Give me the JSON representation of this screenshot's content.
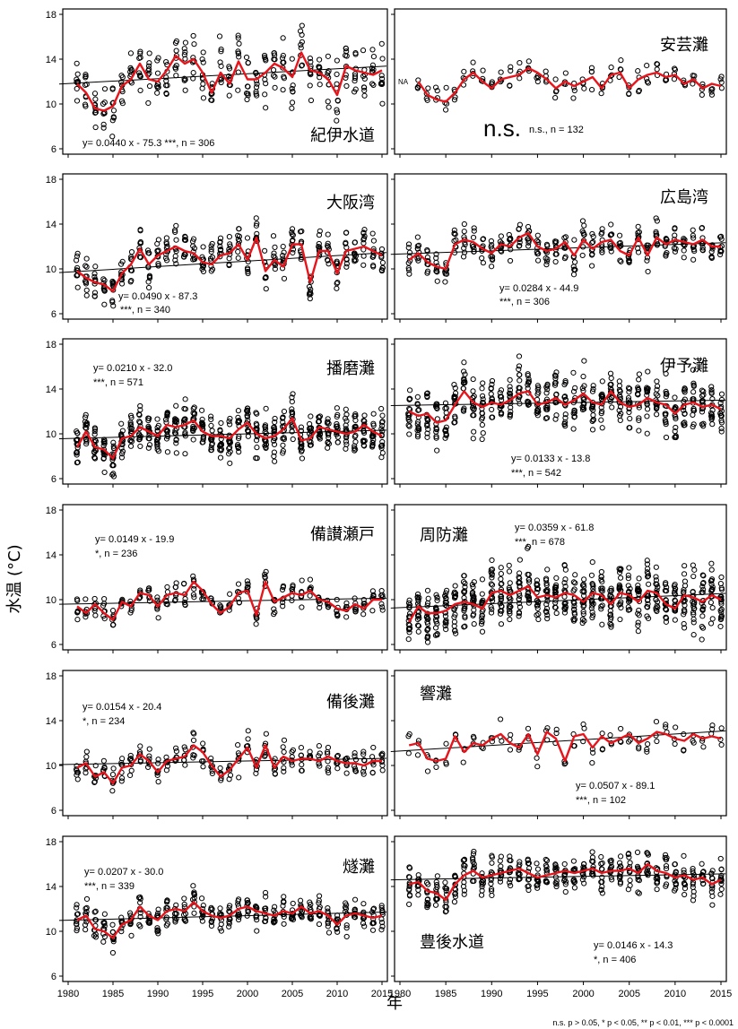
{
  "figure": {
    "ylabel": "水温 (°C)",
    "xlabel": "年",
    "footnote": "n.s. p > 0.05, * p < 0.05, ** p < 0.01, *** p < 0.0001",
    "xticks": [
      "1980",
      "1985",
      "1990",
      "1995",
      "2000",
      "2005",
      "2010",
      "2015"
    ],
    "yticks": [
      "6",
      "10",
      "14",
      "18"
    ],
    "colors": {
      "points": "#000000",
      "mean_line": "#e8141b",
      "trend_line": "#000000"
    }
  },
  "chart_data": [
    {
      "type": "scatter",
      "title": "紀伊水道",
      "equation": "y= 0.0440 x - 75.3 ***, n = 306",
      "slope": 0.044,
      "intercept": -75.3,
      "n": 306,
      "xlim": [
        1980,
        2015
      ],
      "ylim": [
        6,
        18
      ],
      "annual_mean": {
        "x": [
          1981,
          1982,
          1983,
          1984,
          1985,
          1986,
          1987,
          1988,
          1989,
          1990,
          1991,
          1992,
          1993,
          1994,
          1995,
          1996,
          1997,
          1998,
          1999,
          2000,
          2001,
          2002,
          2003,
          2004,
          2005,
          2006,
          2007,
          2008,
          2009,
          2010,
          2011,
          2012,
          2013,
          2014,
          2015
        ],
        "y": [
          11.8,
          11.0,
          9.6,
          9.4,
          9.8,
          11.6,
          12.2,
          13.6,
          12.2,
          12.0,
          13.0,
          14.3,
          13.6,
          14.0,
          12.8,
          11.0,
          12.8,
          11.8,
          13.8,
          12.2,
          12.2,
          12.8,
          13.6,
          13.2,
          12.4,
          14.6,
          13.0,
          12.8,
          12.2,
          10.8,
          13.4,
          13.0,
          12.8,
          12.6,
          13.0
        ]
      },
      "spread": 2.2
    },
    {
      "type": "scatter",
      "title": "安芸灘",
      "equation": "n.s., n = 132",
      "significance": "n.s.",
      "na_label": "NA",
      "n": 132,
      "xlim": [
        1980,
        2015
      ],
      "ylim": [
        6,
        18
      ],
      "annual_mean": {
        "x": [
          1982,
          1983,
          1984,
          1985,
          1986,
          1987,
          1988,
          1989,
          1990,
          1991,
          1992,
          1993,
          1994,
          1995,
          1996,
          1997,
          1998,
          1999,
          2000,
          2001,
          2002,
          2003,
          2004,
          2005,
          2006,
          2007,
          2008,
          2009,
          2010,
          2011,
          2012,
          2013,
          2014,
          2015
        ],
        "y": [
          12.0,
          10.8,
          10.4,
          10.2,
          11.0,
          12.2,
          12.8,
          12.0,
          11.4,
          12.2,
          12.4,
          12.6,
          13.2,
          12.8,
          12.2,
          11.4,
          12.0,
          11.6,
          12.0,
          12.4,
          11.4,
          12.6,
          12.8,
          11.4,
          12.2,
          12.6,
          12.8,
          12.4,
          12.6,
          11.8,
          12.2,
          11.4,
          11.8,
          11.6
        ]
      },
      "spread": 1.0
    },
    {
      "type": "scatter",
      "title": "大阪湾",
      "equation": "y= 0.0490 x - 87.3",
      "equation2": "***, n = 340",
      "slope": 0.049,
      "intercept": -87.3,
      "n": 340,
      "xlim": [
        1980,
        2015
      ],
      "ylim": [
        6,
        18
      ],
      "annual_mean": {
        "x": [
          1981,
          1982,
          1983,
          1984,
          1985,
          1986,
          1987,
          1988,
          1989,
          1990,
          1991,
          1992,
          1993,
          1994,
          1995,
          1996,
          1997,
          1998,
          1999,
          2000,
          2001,
          2002,
          2003,
          2004,
          2005,
          2006,
          2007,
          2008,
          2009,
          2010,
          2011,
          2012,
          2013,
          2014,
          2015
        ],
        "y": [
          9.8,
          9.2,
          8.8,
          8.6,
          8.0,
          9.6,
          10.4,
          11.8,
          10.4,
          11.2,
          11.6,
          12.0,
          11.6,
          11.4,
          10.6,
          10.4,
          11.2,
          11.4,
          12.2,
          10.8,
          12.8,
          9.8,
          10.8,
          10.2,
          12.2,
          12.2,
          8.8,
          11.6,
          11.6,
          9.6,
          11.6,
          11.8,
          12.0,
          11.6,
          11.2
        ]
      },
      "spread": 1.6
    },
    {
      "type": "scatter",
      "title": "広島湾",
      "equation": "y= 0.0284 x - 44.9",
      "equation2": "***, n = 306",
      "slope": 0.0284,
      "intercept": -44.9,
      "n": 306,
      "xlim": [
        1980,
        2015
      ],
      "ylim": [
        6,
        18
      ],
      "annual_mean": {
        "x": [
          1981,
          1982,
          1983,
          1984,
          1985,
          1986,
          1987,
          1988,
          1989,
          1990,
          1991,
          1992,
          1993,
          1994,
          1995,
          1996,
          1997,
          1998,
          1999,
          2000,
          2001,
          2002,
          2003,
          2004,
          2005,
          2006,
          2007,
          2008,
          2009,
          2010,
          2011,
          2012,
          2013,
          2014,
          2015
        ],
        "y": [
          10.8,
          11.4,
          10.6,
          10.2,
          10.0,
          12.2,
          12.6,
          12.4,
          11.8,
          11.4,
          12.2,
          12.0,
          12.8,
          13.2,
          12.0,
          11.6,
          11.8,
          12.4,
          11.2,
          12.6,
          11.8,
          12.4,
          12.6,
          11.6,
          11.2,
          12.8,
          11.2,
          12.8,
          12.2,
          12.6,
          12.4,
          12.2,
          12.6,
          12.0,
          12.0
        ]
      },
      "spread": 1.3
    },
    {
      "type": "scatter",
      "title": "播磨灘",
      "equation": "y= 0.0210 x - 32.0",
      "equation2": "***, n = 571",
      "slope": 0.021,
      "intercept": -32.0,
      "n": 571,
      "xlim": [
        1980,
        2015
      ],
      "ylim": [
        6,
        18
      ],
      "annual_mean": {
        "x": [
          1981,
          1982,
          1983,
          1984,
          1985,
          1986,
          1987,
          1988,
          1989,
          1990,
          1991,
          1992,
          1993,
          1994,
          1995,
          1996,
          1997,
          1998,
          1999,
          2000,
          2001,
          2002,
          2003,
          2004,
          2005,
          2006,
          2007,
          2008,
          2009,
          2010,
          2011,
          2012,
          2013,
          2014,
          2015
        ],
        "y": [
          8.8,
          10.2,
          8.8,
          8.6,
          7.8,
          9.6,
          9.8,
          10.6,
          10.2,
          9.8,
          10.8,
          10.6,
          10.8,
          11.2,
          10.2,
          9.8,
          9.8,
          9.6,
          10.4,
          11.0,
          10.0,
          9.6,
          9.8,
          10.4,
          11.4,
          9.4,
          9.6,
          10.6,
          10.4,
          10.2,
          10.0,
          10.2,
          10.8,
          10.2,
          9.8
        ]
      },
      "spread": 1.8
    },
    {
      "type": "scatter",
      "title": "伊予灘",
      "equation": "y= 0.0133 x - 13.8",
      "equation2": "***, n = 542",
      "slope": 0.0133,
      "intercept": -13.8,
      "n": 542,
      "xlim": [
        1980,
        2015
      ],
      "ylim": [
        6,
        18
      ],
      "annual_mean": {
        "x": [
          1981,
          1982,
          1983,
          1984,
          1985,
          1986,
          1987,
          1988,
          1989,
          1990,
          1991,
          1992,
          1993,
          1994,
          1995,
          1996,
          1997,
          1998,
          1999,
          2000,
          2001,
          2002,
          2003,
          2004,
          2005,
          2006,
          2007,
          2008,
          2009,
          2010,
          2011,
          2012,
          2013,
          2014,
          2015
        ],
        "y": [
          12.0,
          11.6,
          11.8,
          11.0,
          11.2,
          12.6,
          13.8,
          12.8,
          12.4,
          12.8,
          12.6,
          13.0,
          13.6,
          13.8,
          12.6,
          12.8,
          13.2,
          12.6,
          13.0,
          13.6,
          12.8,
          12.6,
          13.8,
          12.8,
          12.4,
          12.6,
          13.2,
          12.8,
          12.6,
          11.8,
          12.6,
          12.8,
          12.4,
          12.6,
          12.2
        ]
      },
      "spread": 2.2
    },
    {
      "type": "scatter",
      "title": "備讃瀬戸",
      "equation": "y= 0.0149 x - 19.9",
      "equation2": "*, n = 236",
      "slope": 0.0149,
      "intercept": -19.9,
      "n": 236,
      "xlim": [
        1980,
        2015
      ],
      "ylim": [
        6,
        18
      ],
      "annual_mean": {
        "x": [
          1981,
          1982,
          1983,
          1984,
          1985,
          1986,
          1987,
          1988,
          1989,
          1990,
          1991,
          1992,
          1993,
          1994,
          1995,
          1996,
          1997,
          1998,
          1999,
          2000,
          2001,
          2002,
          2003,
          2004,
          2005,
          2006,
          2007,
          2008,
          2009,
          2010,
          2011,
          2012,
          2013,
          2014,
          2015
        ],
        "y": [
          9.4,
          8.8,
          9.6,
          8.8,
          8.2,
          9.8,
          9.4,
          10.6,
          10.4,
          9.4,
          10.4,
          10.6,
          10.4,
          11.6,
          10.8,
          9.6,
          8.8,
          9.4,
          10.6,
          10.8,
          8.6,
          11.6,
          9.8,
          10.2,
          10.6,
          10.4,
          10.8,
          10.0,
          9.8,
          9.2,
          9.0,
          9.6,
          9.2,
          10.0,
          10.0
        ]
      },
      "spread": 1.0
    },
    {
      "type": "scatter",
      "title": "周防灘",
      "equation": "y= 0.0359 x - 61.8",
      "equation2": "***, n = 678",
      "slope": 0.0359,
      "intercept": -61.8,
      "n": 678,
      "xlim": [
        1980,
        2015
      ],
      "ylim": [
        6,
        18
      ],
      "annual_mean": {
        "x": [
          1981,
          1982,
          1983,
          1984,
          1985,
          1986,
          1987,
          1988,
          1989,
          1990,
          1991,
          1992,
          1993,
          1994,
          1995,
          1996,
          1997,
          1998,
          1999,
          2000,
          2001,
          2002,
          2003,
          2004,
          2005,
          2006,
          2007,
          2008,
          2009,
          2010,
          2011,
          2012,
          2013,
          2014,
          2015
        ],
        "y": [
          8.0,
          9.4,
          8.8,
          8.8,
          9.0,
          9.6,
          9.8,
          9.6,
          9.2,
          10.6,
          10.8,
          10.4,
          10.8,
          11.2,
          10.2,
          10.4,
          10.2,
          10.6,
          10.4,
          9.8,
          10.6,
          10.4,
          9.6,
          10.6,
          10.4,
          9.8,
          10.8,
          10.6,
          9.6,
          9.2,
          10.4,
          10.2,
          9.8,
          10.4,
          10.0
        ]
      },
      "spread": 2.4
    },
    {
      "type": "scatter",
      "title": "備後灘",
      "equation": "y= 0.0154 x - 20.4",
      "equation2": "*, n = 234",
      "slope": 0.0154,
      "intercept": -20.4,
      "n": 234,
      "xlim": [
        1980,
        2015
      ],
      "ylim": [
        6,
        18
      ],
      "annual_mean": {
        "x": [
          1981,
          1982,
          1983,
          1984,
          1985,
          1986,
          1987,
          1988,
          1989,
          1990,
          1991,
          1992,
          1993,
          1994,
          1995,
          1996,
          1997,
          1998,
          1999,
          2000,
          2001,
          2002,
          2003,
          2004,
          2005,
          2006,
          2007,
          2008,
          2009,
          2010,
          2011,
          2012,
          2013,
          2014,
          2015
        ],
        "y": [
          9.8,
          10.2,
          9.0,
          9.4,
          8.4,
          9.8,
          10.0,
          11.0,
          10.4,
          9.4,
          10.4,
          10.6,
          10.8,
          11.8,
          11.2,
          10.0,
          9.0,
          9.6,
          10.6,
          11.6,
          9.8,
          11.8,
          9.8,
          10.8,
          10.4,
          10.6,
          10.6,
          10.4,
          10.8,
          10.4,
          10.2,
          10.2,
          10.0,
          10.4,
          10.4
        ]
      },
      "spread": 1.1
    },
    {
      "type": "scatter",
      "title": "響灘",
      "equation": "y= 0.0507 x - 89.1",
      "equation2": "***, n = 102",
      "slope": 0.0507,
      "intercept": -89.1,
      "n": 102,
      "xlim": [
        1980,
        2015
      ],
      "ylim": [
        6,
        18
      ],
      "annual_mean": {
        "x": [
          1981,
          1982,
          1983,
          1984,
          1985,
          1986,
          1987,
          1988,
          1989,
          1990,
          1991,
          1992,
          1993,
          1994,
          1995,
          1996,
          1997,
          1998,
          1999,
          2000,
          2001,
          2002,
          2003,
          2004,
          2005,
          2006,
          2007,
          2008,
          2009,
          2010,
          2011,
          2012,
          2013,
          2014,
          2015
        ],
        "y": [
          11.8,
          12.0,
          10.6,
          10.4,
          10.6,
          12.6,
          11.2,
          12.0,
          11.8,
          12.4,
          12.8,
          12.0,
          11.6,
          12.8,
          11.0,
          13.0,
          12.4,
          10.4,
          12.6,
          12.8,
          11.6,
          12.6,
          12.0,
          12.4,
          12.8,
          12.0,
          12.4,
          13.0,
          12.8,
          12.4,
          12.2,
          12.8,
          12.4,
          12.6,
          12.4
        ]
      },
      "spread": 1.2
    },
    {
      "type": "scatter",
      "title": "燧灘",
      "equation": "y= 0.0207 x - 30.0",
      "equation2": "***, n = 339",
      "slope": 0.0207,
      "intercept": -30.0,
      "n": 339,
      "xlim": [
        1980,
        2015
      ],
      "ylim": [
        6,
        18
      ],
      "annual_mean": {
        "x": [
          1981,
          1982,
          1983,
          1984,
          1985,
          1986,
          1987,
          1988,
          1989,
          1990,
          1991,
          1992,
          1993,
          1994,
          1995,
          1996,
          1997,
          1998,
          1999,
          2000,
          2001,
          2002,
          2003,
          2004,
          2005,
          2006,
          2007,
          2008,
          2009,
          2010,
          2011,
          2012,
          2013,
          2014,
          2015
        ],
        "y": [
          11.0,
          11.4,
          10.2,
          10.0,
          9.4,
          10.6,
          11.0,
          12.2,
          11.4,
          11.0,
          11.8,
          12.0,
          11.8,
          12.6,
          11.8,
          11.4,
          11.2,
          11.4,
          12.0,
          12.2,
          11.8,
          11.6,
          11.4,
          11.8,
          11.6,
          12.2,
          11.6,
          11.8,
          11.4,
          10.6,
          11.4,
          11.6,
          11.4,
          11.2,
          11.4
        ]
      },
      "spread": 1.3
    },
    {
      "type": "scatter",
      "title": "豊後水道",
      "equation": "y= 0.0146 x - 14.3",
      "equation2": "*, n = 406",
      "slope": 0.0146,
      "intercept": -14.3,
      "n": 406,
      "xlim": [
        1980,
        2015
      ],
      "ylim": [
        6,
        18
      ],
      "annual_mean": {
        "x": [
          1981,
          1982,
          1983,
          1984,
          1985,
          1986,
          1987,
          1988,
          1989,
          1990,
          1991,
          1992,
          1993,
          1994,
          1995,
          1996,
          1997,
          1998,
          1999,
          2000,
          2001,
          2002,
          2003,
          2004,
          2005,
          2006,
          2007,
          2008,
          2009,
          2010,
          2011,
          2012,
          2013,
          2014,
          2015
        ],
        "y": [
          14.2,
          14.4,
          13.6,
          13.4,
          12.8,
          14.2,
          15.0,
          15.4,
          14.8,
          15.0,
          15.2,
          15.4,
          15.6,
          15.2,
          14.8,
          15.0,
          15.2,
          15.4,
          15.2,
          15.4,
          15.6,
          15.2,
          15.4,
          15.4,
          15.6,
          15.2,
          16.0,
          15.4,
          15.2,
          14.8,
          15.0,
          14.6,
          14.8,
          14.2,
          14.6
        ]
      },
      "spread": 1.5
    }
  ]
}
